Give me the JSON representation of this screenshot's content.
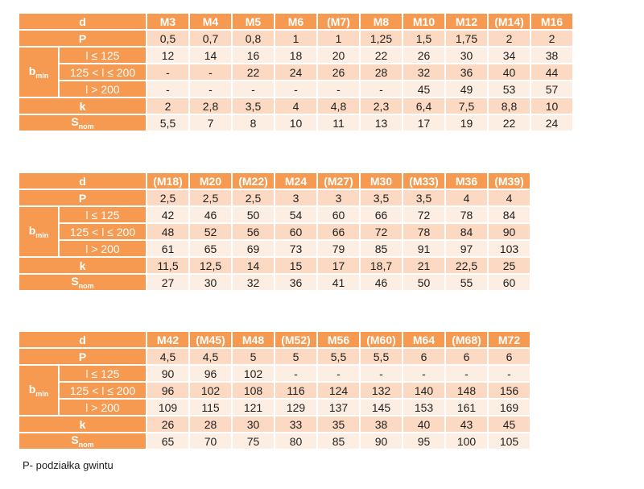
{
  "labels": {
    "d": "d",
    "p": "P",
    "b": "b",
    "b_sub": "min",
    "b_rows": [
      "l ≤ 125",
      "125 < l ≤ 200",
      "l > 200"
    ],
    "k": "k",
    "s": "S",
    "s_sub": "nom"
  },
  "tables": [
    {
      "d": [
        "M3",
        "M4",
        "M5",
        "M6",
        "(M7)",
        "M8",
        "M10",
        "M12",
        "(M14)",
        "M16"
      ],
      "p": [
        "0,5",
        "0,7",
        "0,8",
        "1",
        "1",
        "1,25",
        "1,5",
        "1,75",
        "2",
        "2"
      ],
      "b1": [
        "12",
        "14",
        "16",
        "18",
        "20",
        "22",
        "26",
        "30",
        "34",
        "38"
      ],
      "b2": [
        "-",
        "-",
        "22",
        "24",
        "26",
        "28",
        "32",
        "36",
        "40",
        "44"
      ],
      "b3": [
        "-",
        "-",
        "-",
        "-",
        "-",
        "-",
        "45",
        "49",
        "53",
        "57"
      ],
      "k": [
        "2",
        "2,8",
        "3,5",
        "4",
        "4,8",
        "2,3",
        "6,4",
        "7,5",
        "8,8",
        "10"
      ],
      "s": [
        "5,5",
        "7",
        "8",
        "10",
        "11",
        "13",
        "17",
        "19",
        "22",
        "24"
      ]
    },
    {
      "d": [
        "(M18)",
        "M20",
        "(M22)",
        "M24",
        "(M27)",
        "M30",
        "(M33)",
        "M36",
        "(M39)"
      ],
      "p": [
        "2,5",
        "2,5",
        "2,5",
        "3",
        "3",
        "3,5",
        "3,5",
        "4",
        "4"
      ],
      "b1": [
        "42",
        "46",
        "50",
        "54",
        "60",
        "66",
        "72",
        "78",
        "84"
      ],
      "b2": [
        "48",
        "52",
        "56",
        "60",
        "66",
        "72",
        "78",
        "84",
        "90"
      ],
      "b3": [
        "61",
        "65",
        "69",
        "73",
        "79",
        "85",
        "91",
        "97",
        "103"
      ],
      "k": [
        "11,5",
        "12,5",
        "14",
        "15",
        "17",
        "18,7",
        "21",
        "22,5",
        "25"
      ],
      "s": [
        "27",
        "30",
        "32",
        "36",
        "41",
        "46",
        "50",
        "55",
        "60"
      ]
    },
    {
      "d": [
        "M42",
        "(M45)",
        "M48",
        "(M52)",
        "M56",
        "(M60)",
        "M64",
        "(M68)",
        "M72"
      ],
      "p": [
        "4,5",
        "4,5",
        "5",
        "5",
        "5,5",
        "5,5",
        "6",
        "6",
        "6"
      ],
      "b1": [
        "90",
        "96",
        "102",
        "-",
        "-",
        "-",
        "-",
        "-",
        "-"
      ],
      "b2": [
        "96",
        "102",
        "108",
        "116",
        "124",
        "132",
        "140",
        "148",
        "156"
      ],
      "b3": [
        "109",
        "115",
        "121",
        "129",
        "137",
        "145",
        "153",
        "161",
        "169"
      ],
      "k": [
        "26",
        "28",
        "30",
        "33",
        "35",
        "38",
        "40",
        "43",
        "45"
      ],
      "s": [
        "65",
        "70",
        "75",
        "80",
        "85",
        "90",
        "95",
        "100",
        "105"
      ]
    }
  ],
  "footnote": "P- podziałka gwintu"
}
